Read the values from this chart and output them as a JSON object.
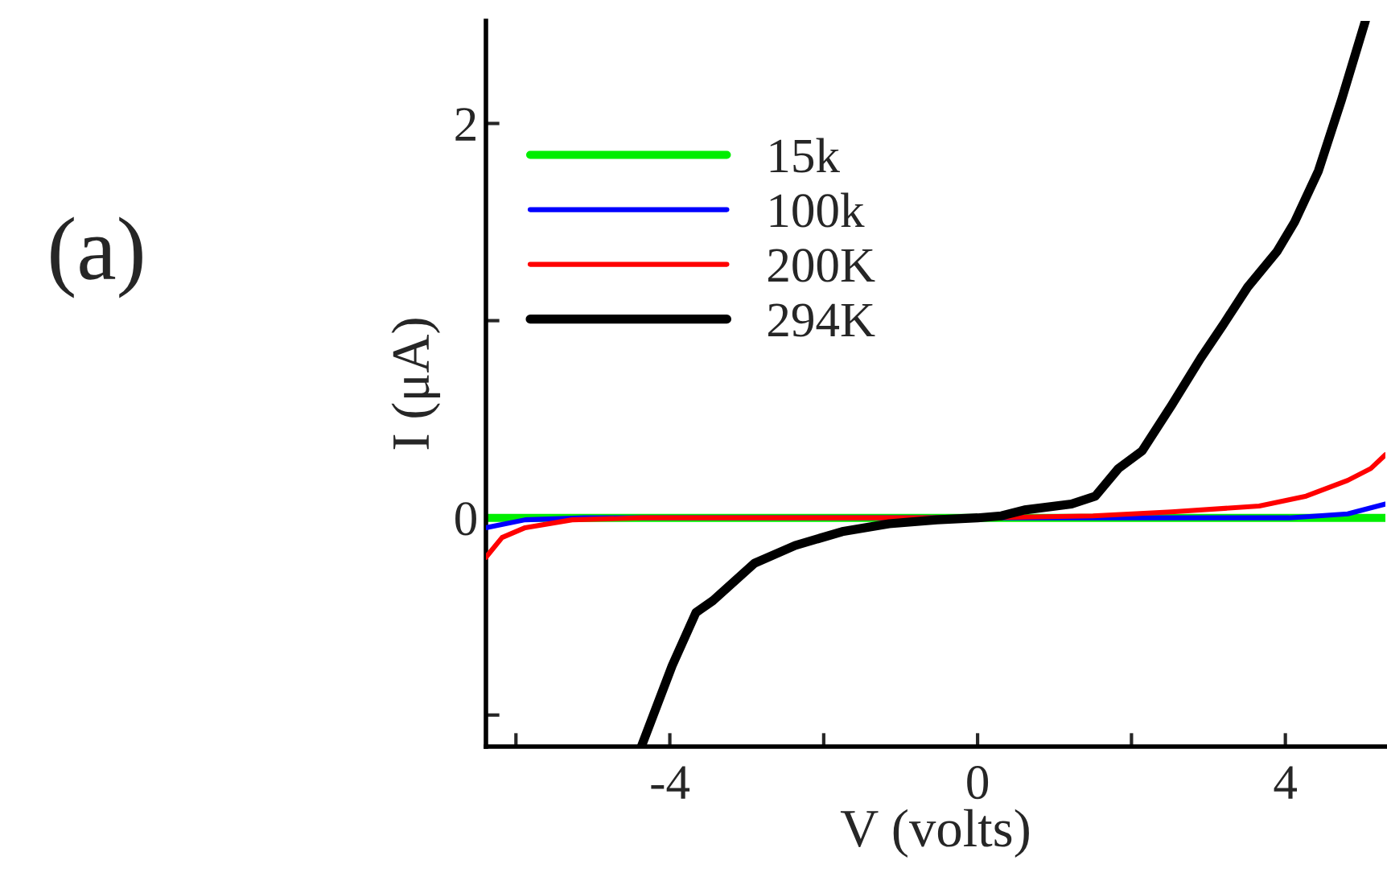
{
  "chart_data": {
    "type": "line",
    "xlabel": "V (volts)",
    "ylabel": "I (μA)",
    "annotations": [
      "(a)"
    ],
    "xlim": [
      -6.39,
      5.3
    ],
    "ylim": [
      -1.16,
      2.52
    ],
    "xticks": [
      {
        "value": -6,
        "label": null
      },
      -4,
      {
        "value": -2,
        "label": null
      },
      0,
      {
        "value": 2,
        "label": null
      },
      4
    ],
    "yticks": [
      {
        "value": -1,
        "label": null
      },
      0,
      {
        "value": 1,
        "label": null
      },
      2
    ],
    "grid": false,
    "legend": "top left",
    "line_style": "solid",
    "marker": "none",
    "series": [
      {
        "name": "15k",
        "color": "#00ee00",
        "x": [
          -6.39,
          -5.5,
          0,
          5.3
        ],
        "values": [
          0,
          0,
          0,
          0
        ]
      },
      {
        "name": "100k",
        "color": "#0000ff",
        "x": [
          -6.39,
          -5.88,
          -5.11,
          0,
          4.05,
          4.81,
          5.3
        ],
        "values": [
          -0.05,
          -0.01,
          0,
          0,
          0,
          0.02,
          0.07
        ]
      },
      {
        "name": "200K",
        "color": "#ff0000",
        "x": [
          -6.39,
          -6.18,
          -5.88,
          -5.27,
          -4.35,
          0,
          1.5,
          2.52,
          3.66,
          4.27,
          4.81,
          5.11,
          5.3
        ],
        "values": [
          -0.2,
          -0.1,
          -0.05,
          -0.01,
          0,
          0,
          0.01,
          0.03,
          0.06,
          0.11,
          0.19,
          0.25,
          0.32
        ]
      },
      {
        "name": "294K",
        "color": "#000000",
        "x": [
          -4.37,
          -3.97,
          -3.66,
          -3.44,
          -2.9,
          -2.37,
          -1.76,
          -1.15,
          -0.53,
          0,
          0.31,
          0.61,
          1.22,
          1.53,
          1.83,
          2.14,
          2.52,
          2.9,
          3.21,
          3.51,
          3.89,
          4.12,
          4.43,
          4.73,
          5.04
        ],
        "values": [
          -1.16,
          -0.75,
          -0.48,
          -0.42,
          -0.23,
          -0.14,
          -0.07,
          -0.03,
          -0.01,
          0,
          0.01,
          0.04,
          0.07,
          0.11,
          0.25,
          0.34,
          0.57,
          0.81,
          0.99,
          1.17,
          1.35,
          1.5,
          1.76,
          2.12,
          2.52
        ]
      }
    ]
  }
}
